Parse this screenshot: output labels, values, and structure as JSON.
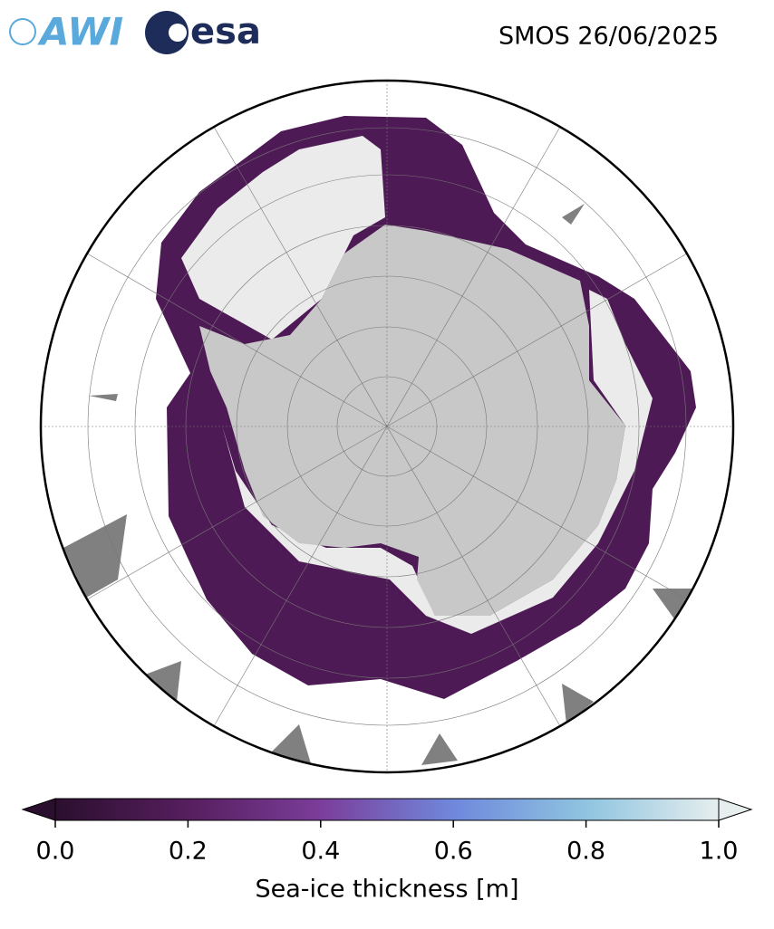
{
  "header": {
    "logos": [
      "AWI",
      "esa"
    ],
    "title": "SMOS 26/06/2025"
  },
  "colorbar": {
    "label": "Sea-ice thickness [m]",
    "lim": [
      0,
      1
    ],
    "ticks": [
      {
        "value": 0,
        "label": "0.0"
      },
      0.2,
      0.4,
      0.6,
      0.8,
      {
        "value": 1,
        "label": "1.0"
      }
    ],
    "colors": [
      "#2b0f2e",
      "#561e5e",
      "#7b3d9a",
      "#6f88dc",
      "#8fc4e0",
      "#e6eeee"
    ]
  }
}
